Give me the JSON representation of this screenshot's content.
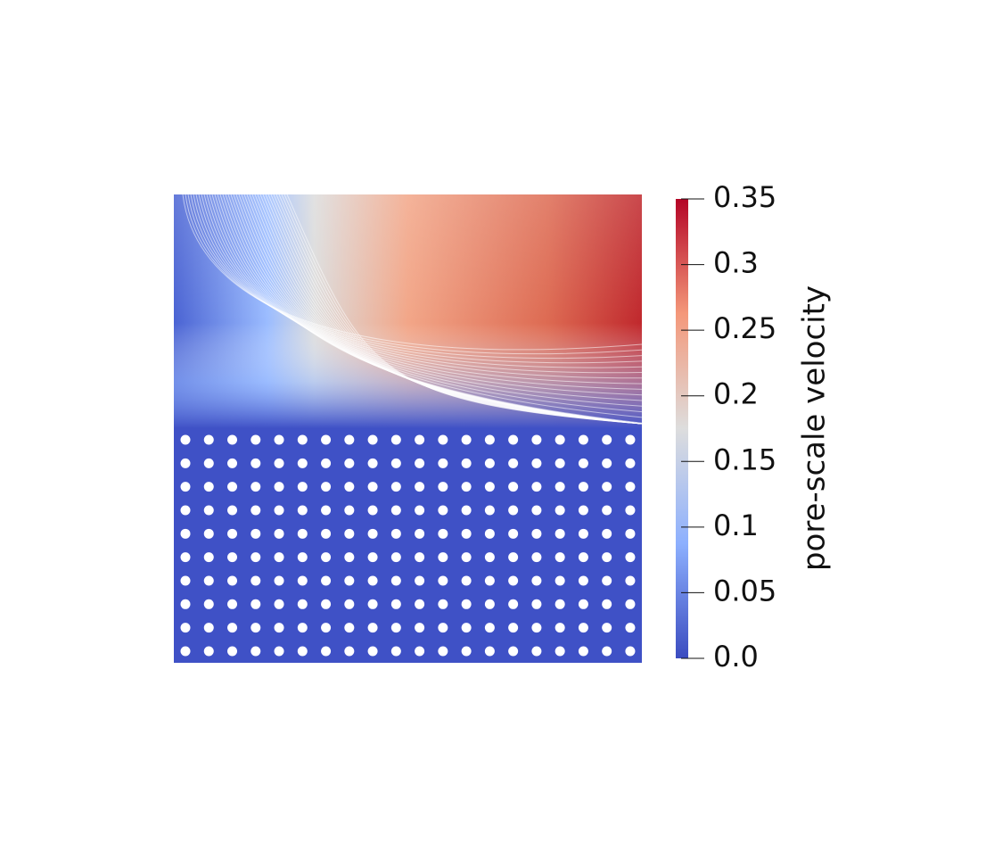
{
  "chart_data": {
    "type": "heatmap",
    "colorbar": {
      "title": "pore-scale velocity",
      "lim": [
        0,
        0.35
      ],
      "ticks": [
        {
          "value": 0,
          "label": "0.0"
        },
        0.05,
        0.1,
        0.15,
        0.2,
        0.25,
        0.3,
        0.35
      ],
      "colors": [
        "#3b4cc0",
        "#8db0fe",
        "#dddddd",
        "#f4987a",
        "#b40426"
      ]
    }
  }
}
